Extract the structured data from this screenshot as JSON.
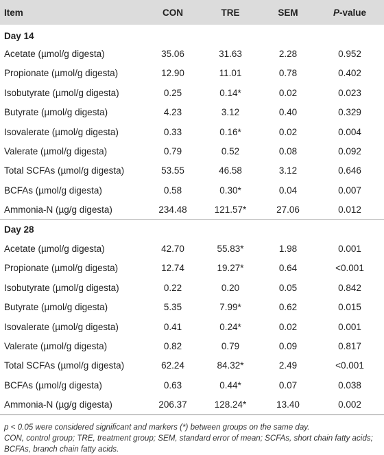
{
  "table": {
    "headers": {
      "item": "Item",
      "con": "CON",
      "tre": "TRE",
      "sem": "SEM",
      "p_prefix": "P",
      "p_suffix": "-value"
    },
    "sections": [
      {
        "title": "Day 14",
        "rows": [
          {
            "item": "Acetate (µmol/g digesta)",
            "con": "35.06",
            "tre": "31.63",
            "sem": "2.28",
            "p": "0.952"
          },
          {
            "item": "Propionate (µmol/g digesta)",
            "con": "12.90",
            "tre": "11.01",
            "sem": "0.78",
            "p": "0.402"
          },
          {
            "item": "Isobutyrate (µmol/g digesta)",
            "con": "0.25",
            "tre": "0.14*",
            "sem": "0.02",
            "p": "0.023"
          },
          {
            "item": "Butyrate (µmol/g digesta)",
            "con": "4.23",
            "tre": "3.12",
            "sem": "0.40",
            "p": "0.329"
          },
          {
            "item": "Isovalerate (µmol/g digesta)",
            "con": "0.33",
            "tre": "0.16*",
            "sem": "0.02",
            "p": "0.004"
          },
          {
            "item": "Valerate (µmol/g digesta)",
            "con": "0.79",
            "tre": "0.52",
            "sem": "0.08",
            "p": "0.092"
          },
          {
            "item": "Total SCFAs (µmol/g digesta)",
            "con": "53.55",
            "tre": "46.58",
            "sem": "3.12",
            "p": "0.646"
          },
          {
            "item": "BCFAs (µmol/g digesta)",
            "con": "0.58",
            "tre": "0.30*",
            "sem": "0.04",
            "p": "0.007"
          },
          {
            "item": "Ammonia-N (µg/g digesta)",
            "con": "234.48",
            "tre": "121.57*",
            "sem": "27.06",
            "p": "0.012"
          }
        ]
      },
      {
        "title": "Day 28",
        "rows": [
          {
            "item": "Acetate (µmol/g digesta)",
            "con": "42.70",
            "tre": "55.83*",
            "sem": "1.98",
            "p": "0.001"
          },
          {
            "item": "Propionate (µmol/g digesta)",
            "con": "12.74",
            "tre": "19.27*",
            "sem": "0.64",
            "p": "<0.001"
          },
          {
            "item": "Isobutyrate (µmol/g digesta)",
            "con": "0.22",
            "tre": "0.20",
            "sem": "0.05",
            "p": "0.842"
          },
          {
            "item": "Butyrate (µmol/g digesta)",
            "con": "5.35",
            "tre": "7.99*",
            "sem": "0.62",
            "p": "0.015"
          },
          {
            "item": "Isovalerate (µmol/g digesta)",
            "con": "0.41",
            "tre": "0.24*",
            "sem": "0.02",
            "p": "0.001"
          },
          {
            "item": "Valerate (µmol/g digesta)",
            "con": "0.82",
            "tre": "0.79",
            "sem": "0.09",
            "p": "0.817"
          },
          {
            "item": "Total SCFAs (µmol/g digesta)",
            "con": "62.24",
            "tre": "84.32*",
            "sem": "2.49",
            "p": "<0.001"
          },
          {
            "item": "BCFAs (µmol/g digesta)",
            "con": "0.63",
            "tre": "0.44*",
            "sem": "0.07",
            "p": "0.038"
          },
          {
            "item": "Ammonia-N (µg/g digesta)",
            "con": "206.37",
            "tre": "128.24*",
            "sem": "13.40",
            "p": "0.002"
          }
        ]
      }
    ]
  },
  "footnote": {
    "line1": "p < 0.05 were considered significant and markers (*) between groups on the same day.",
    "line2": "CON, control group; TRE, treatment group; SEM, standard error of mean; SCFAs, short chain fatty acids; BCFAs, branch chain fatty acids."
  },
  "colors": {
    "header_bg": "#dcdcdc",
    "text": "#222222"
  }
}
